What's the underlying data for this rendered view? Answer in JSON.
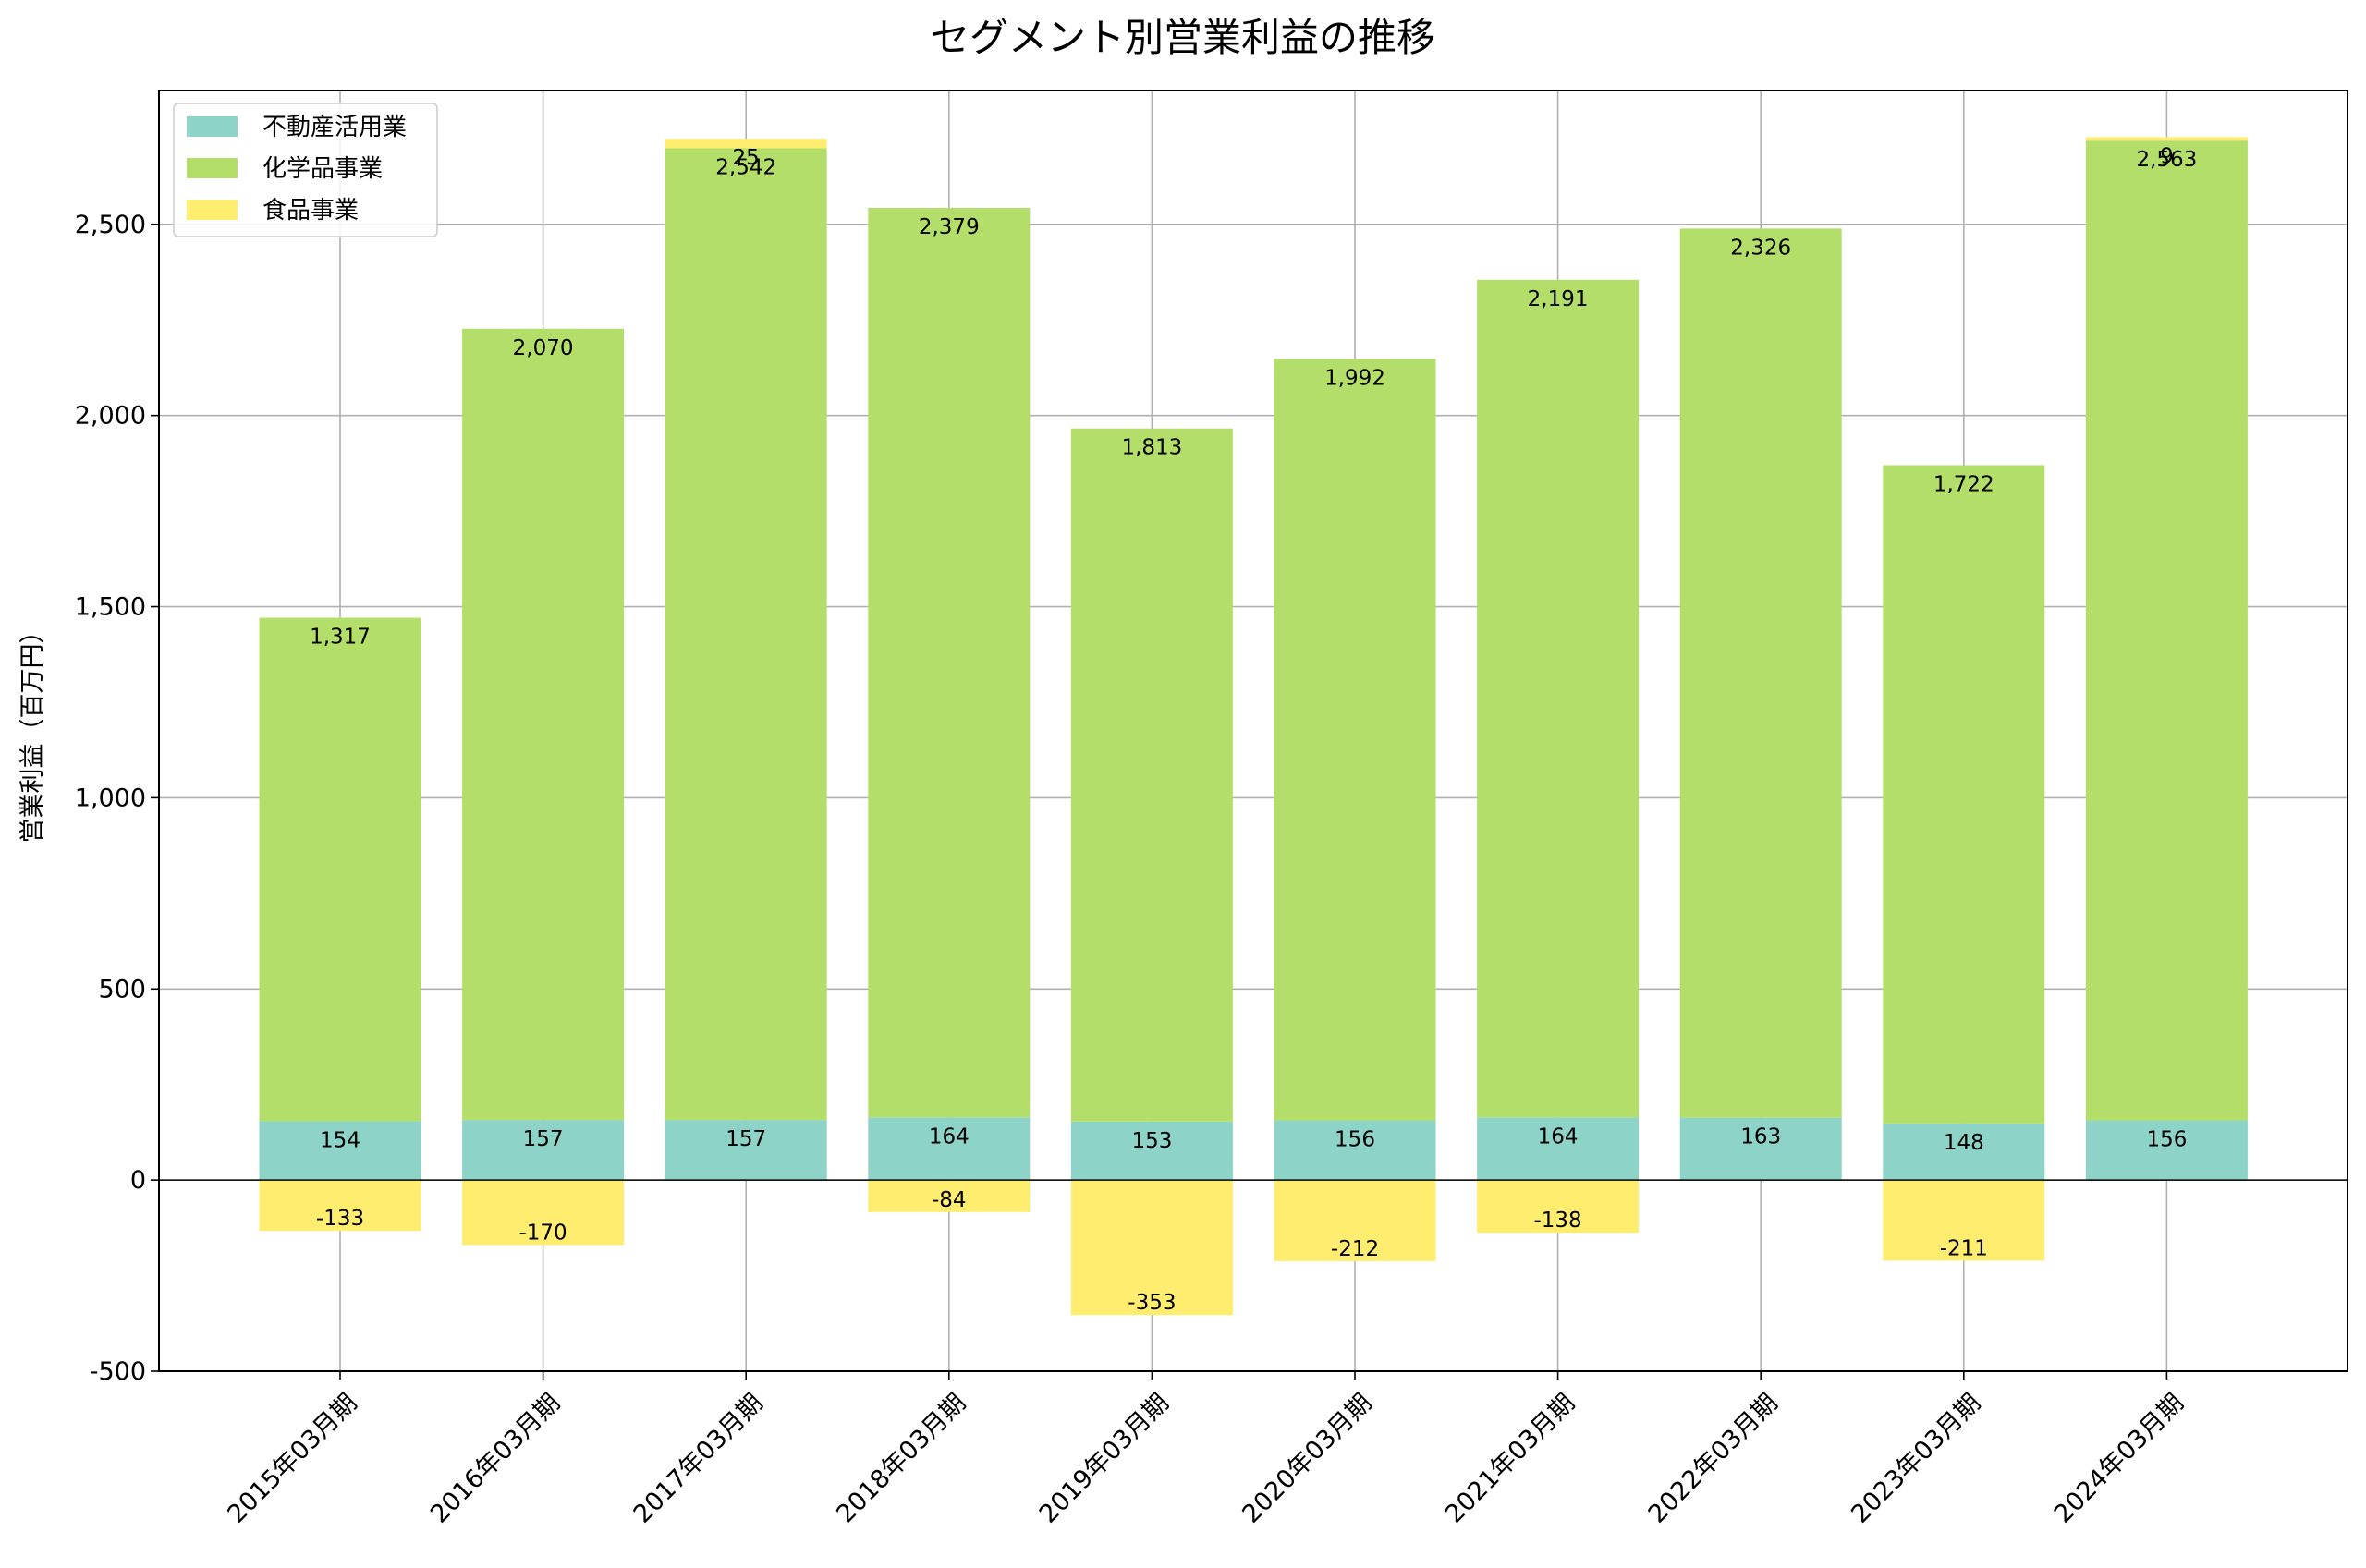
{
  "chart_data": {
    "type": "bar",
    "stacked": true,
    "title": "セグメント別営業利益の推移",
    "xlabel": "",
    "ylabel": "営業利益（百万円）",
    "ylim": [
      -500,
      2850
    ],
    "yticks": [
      -500,
      0,
      500,
      1000,
      1500,
      2000,
      2500
    ],
    "ytick_labels": [
      "-500",
      "0",
      "500",
      "1,000",
      "1,500",
      "2,000",
      "2,500"
    ],
    "grid": true,
    "legend": "top-left",
    "categories": [
      "2015年03月期",
      "2016年03月期",
      "2017年03月期",
      "2018年03月期",
      "2019年03月期",
      "2020年03月期",
      "2021年03月期",
      "2022年03月期",
      "2023年03月期",
      "2024年03月期"
    ],
    "series": [
      {
        "name": "不動産活用業",
        "color": "#8dd3c7",
        "values": [
          154,
          157,
          157,
          164,
          153,
          156,
          164,
          163,
          148,
          156
        ],
        "labels": [
          "154",
          "157",
          "157",
          "164",
          "153",
          "156",
          "164",
          "163",
          "148",
          "156"
        ]
      },
      {
        "name": "化学品事業",
        "color": "#b3de69",
        "values": [
          1317,
          2070,
          2542,
          2379,
          1813,
          1992,
          2191,
          2326,
          1722,
          2563
        ],
        "labels": [
          "1,317",
          "2,070",
          "2,542",
          "2,379",
          "1,813",
          "1,992",
          "2,191",
          "2,326",
          "1,722",
          "2,563"
        ]
      },
      {
        "name": "食品事業",
        "color": "#ffed6f",
        "values": [
          -133,
          -170,
          25,
          -84,
          -353,
          -212,
          -138,
          0,
          -211,
          9
        ],
        "labels": [
          "-133",
          "-170",
          "25",
          "-84",
          "-353",
          "-212",
          "-138",
          "",
          "-211",
          "9"
        ]
      }
    ]
  }
}
